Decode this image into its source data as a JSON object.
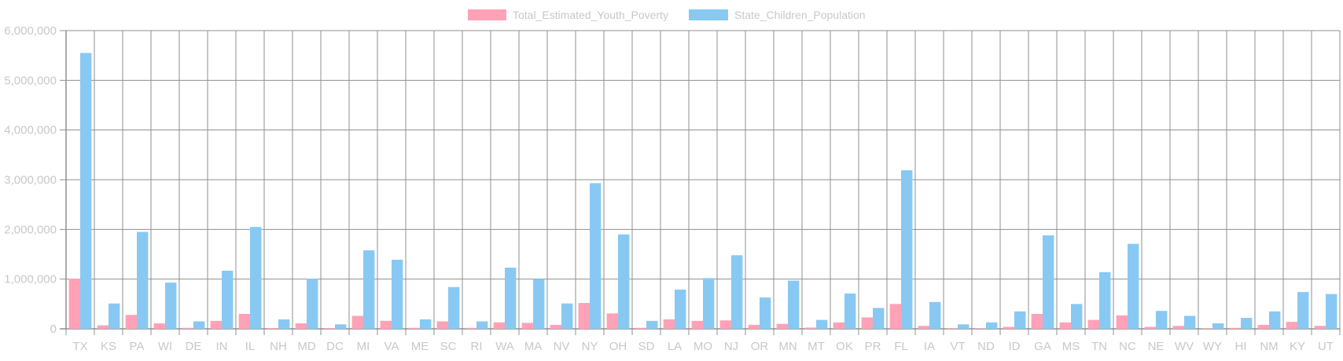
{
  "chart_data": {
    "type": "bar",
    "categories": [
      "TX",
      "KS",
      "PA",
      "WI",
      "DE",
      "IN",
      "IL",
      "NH",
      "MD",
      "DC",
      "MI",
      "VA",
      "ME",
      "SC",
      "RI",
      "WA",
      "MA",
      "NV",
      "NY",
      "OH",
      "SD",
      "LA",
      "MO",
      "NJ",
      "OR",
      "MN",
      "MT",
      "OK",
      "PR",
      "FL",
      "IA",
      "VT",
      "ND",
      "ID",
      "GA",
      "MS",
      "TN",
      "NC",
      "NE",
      "WV",
      "WY",
      "HI",
      "NM",
      "KY",
      "UT"
    ],
    "series": [
      {
        "name": "Total_Estimated_Youth_Poverty",
        "color": "#ffa2b7",
        "values": [
          1010000,
          70000,
          280000,
          110000,
          20000,
          160000,
          300000,
          15000,
          110000,
          15000,
          260000,
          160000,
          20000,
          150000,
          20000,
          130000,
          120000,
          80000,
          520000,
          310000,
          20000,
          190000,
          160000,
          170000,
          80000,
          100000,
          25000,
          130000,
          230000,
          500000,
          60000,
          10000,
          10000,
          40000,
          300000,
          130000,
          180000,
          270000,
          40000,
          60000,
          10000,
          20000,
          80000,
          140000,
          60000
        ]
      },
      {
        "name": "State_Children_Population",
        "color": "#88c9f3",
        "values": [
          5550000,
          510000,
          1950000,
          930000,
          150000,
          1170000,
          2050000,
          190000,
          1010000,
          90000,
          1580000,
          1390000,
          190000,
          840000,
          150000,
          1230000,
          1000000,
          510000,
          2930000,
          1900000,
          160000,
          790000,
          1020000,
          1480000,
          630000,
          970000,
          180000,
          710000,
          420000,
          3190000,
          540000,
          90000,
          130000,
          350000,
          1880000,
          500000,
          1140000,
          1710000,
          360000,
          260000,
          110000,
          220000,
          350000,
          740000,
          700000
        ]
      }
    ],
    "ylim": [
      0,
      6000000
    ],
    "yticks": [
      0,
      1000000,
      2000000,
      3000000,
      4000000,
      5000000,
      6000000
    ],
    "ytick_labels": [
      "0",
      "1,000,000",
      "2,000,000",
      "3,000,000",
      "4,000,000",
      "5,000,000",
      "6,000,000"
    ],
    "title": "",
    "xlabel": "",
    "ylabel": "",
    "grid": true,
    "legend_position": "top-center"
  }
}
